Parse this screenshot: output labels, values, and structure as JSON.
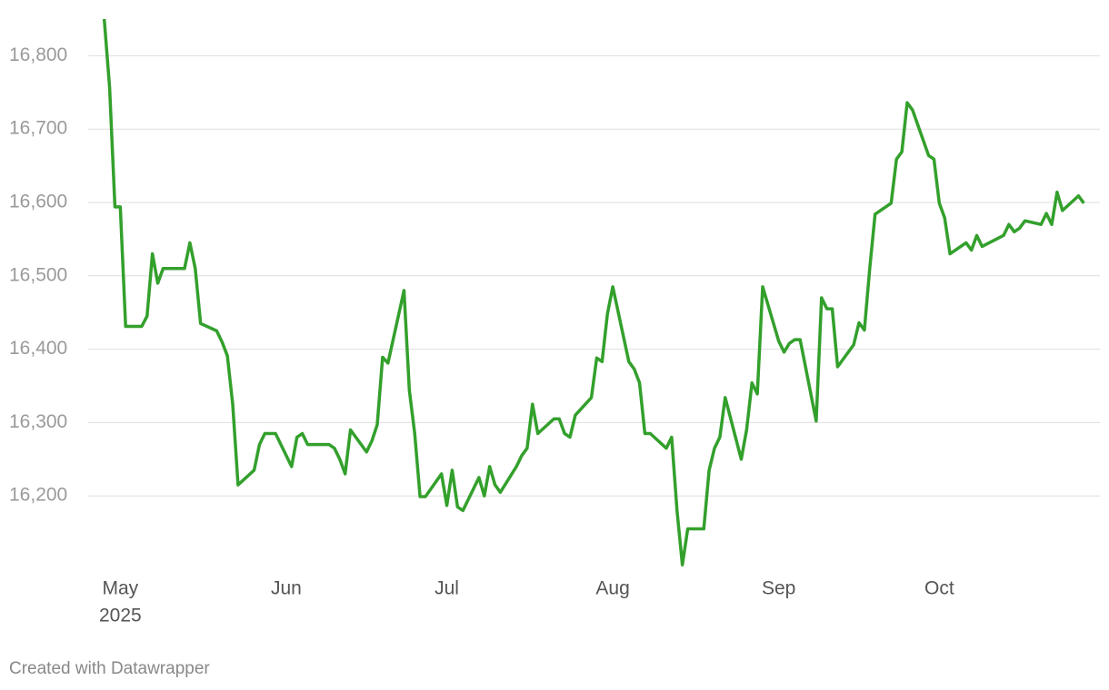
{
  "chart_data": {
    "type": "line",
    "x": [
      -3,
      -2,
      -1,
      0,
      1,
      4,
      5,
      6,
      7,
      8,
      12,
      13,
      14,
      15,
      18,
      19,
      20,
      21,
      22,
      25,
      26,
      27,
      29,
      32,
      33,
      34,
      35,
      39,
      40,
      41,
      42,
      43,
      46,
      47,
      48,
      49,
      50,
      53,
      54,
      55,
      56,
      57,
      60,
      61,
      62,
      63,
      64,
      67,
      68,
      69,
      70,
      71,
      74,
      75,
      76,
      77,
      78,
      81,
      82,
      83,
      84,
      85,
      88,
      89,
      90,
      91,
      92,
      95,
      96,
      97,
      98,
      99,
      102,
      103,
      104,
      105,
      106,
      109,
      110,
      111,
      112,
      113,
      116,
      117,
      118,
      119,
      120,
      123,
      124,
      125,
      126,
      127,
      130,
      131,
      132,
      133,
      134,
      137,
      138,
      139,
      140,
      141,
      144,
      145,
      146,
      147,
      148,
      151,
      152,
      153,
      154,
      155,
      158,
      159,
      160,
      161,
      165,
      166,
      167,
      168,
      169,
      172,
      173,
      174,
      175,
      176,
      179,
      180
    ],
    "values": [
      16850,
      16757,
      16594,
      16594,
      16431,
      16431,
      16445,
      16530,
      16490,
      16510,
      16510,
      16545,
      16510,
      16435,
      16425,
      16410,
      16391,
      16325,
      16215,
      16235,
      16270,
      16285,
      16285,
      16240,
      16280,
      16285,
      16270,
      16270,
      16265,
      16250,
      16230,
      16290,
      16260,
      16275,
      16297,
      16389,
      16381,
      16480,
      16344,
      16285,
      16199,
      16199,
      16230,
      16187,
      16235,
      16185,
      16180,
      16225,
      16200,
      16240,
      16215,
      16205,
      16240,
      16255,
      16265,
      16325,
      16285,
      16305,
      16305,
      16285,
      16280,
      16310,
      16334,
      16388,
      16383,
      16448,
      16485,
      16383,
      16373,
      16354,
      16285,
      16285,
      16265,
      16280,
      16180,
      16106,
      16155,
      16155,
      16235,
      16265,
      16280,
      16334,
      16250,
      16290,
      16354,
      16339,
      16485,
      16411,
      16396,
      16408,
      16413,
      16413,
      16302,
      16470,
      16455,
      16455,
      16376,
      16406,
      16436,
      16426,
      16510,
      16584,
      16599,
      16659,
      16669,
      16736,
      16726,
      16664,
      16659,
      16599,
      16579,
      16530,
      16545,
      16535,
      16555,
      16540,
      16555,
      16570,
      16560,
      16565,
      16575,
      16570,
      16585,
      16570,
      16614,
      16589,
      16609,
      16599
    ],
    "color": "#33a02c",
    "xlim": [
      -6,
      183
    ],
    "xticks": [
      {
        "value": 0,
        "label": "May"
      },
      {
        "value": 31,
        "label": "Jun"
      },
      {
        "value": 61,
        "label": "Jul"
      },
      {
        "value": 92,
        "label": "Aug"
      },
      {
        "value": 123,
        "label": "Sep"
      },
      {
        "value": 153,
        "label": "Oct"
      }
    ],
    "x_year_label": "2025",
    "ylim": [
      16100,
      16850
    ],
    "yticks": [
      {
        "value": 16200,
        "label": "16,200"
      },
      {
        "value": 16300,
        "label": "16,300"
      },
      {
        "value": 16400,
        "label": "16,400"
      },
      {
        "value": 16500,
        "label": "16,500"
      },
      {
        "value": 16600,
        "label": "16,600"
      },
      {
        "value": 16700,
        "label": "16,700"
      },
      {
        "value": 16800,
        "label": "16,800"
      }
    ],
    "grid": true,
    "footer": "Created with Datawrapper"
  }
}
